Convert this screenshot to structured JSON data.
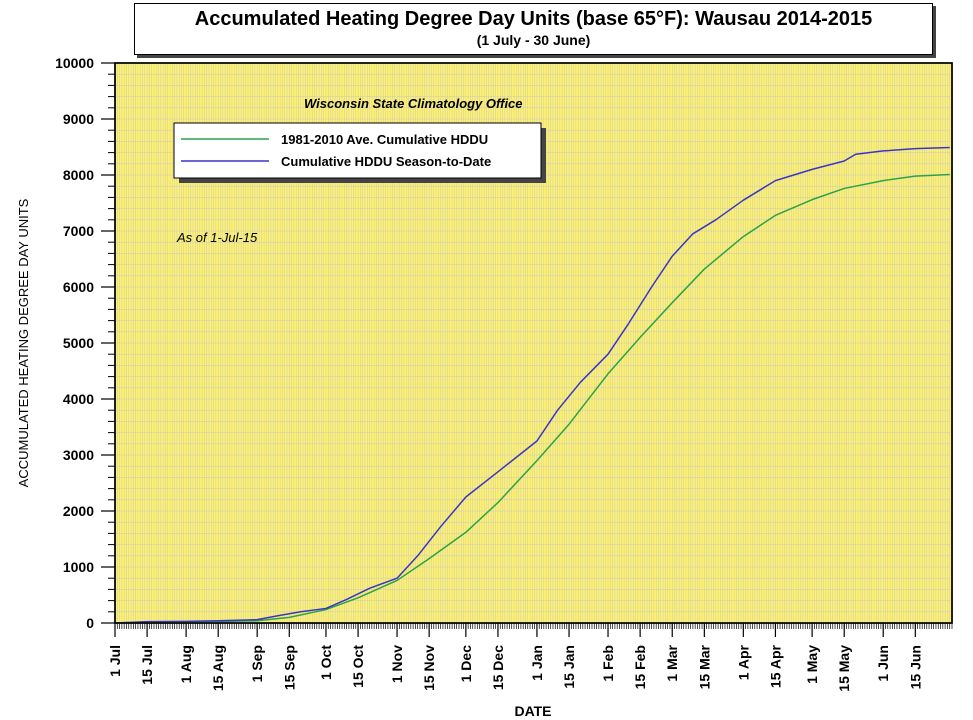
{
  "header": {
    "title": "Accumulated Heating Degree Day Units (base 65°F): Wausau 2014-2015",
    "subtitle": "(1 July - 30 June)"
  },
  "annotations": {
    "source": "Wisconsin State Climatology Office",
    "as_of": "As of 1-Jul-15"
  },
  "colors": {
    "plot_background": "#fff26b",
    "grid": "#c8c8c8",
    "average_line": "#2ca24a",
    "season_line": "#3a35c8"
  },
  "chart_data": {
    "type": "line",
    "xlabel": "DATE",
    "ylabel": "ACCUMULATED HEATING DEGREE DAY UNITS",
    "ylim": [
      0,
      10000
    ],
    "yticks": [
      0,
      1000,
      2000,
      3000,
      4000,
      5000,
      6000,
      7000,
      8000,
      9000,
      10000
    ],
    "x_ticks": [
      "1 Jul",
      "15 Jul",
      "1 Aug",
      "15 Aug",
      "1 Sep",
      "15 Sep",
      "1 Oct",
      "15 Oct",
      "1 Nov",
      "15 Nov",
      "1 Dec",
      "15 Dec",
      "1 Jan",
      "15 Jan",
      "1 Feb",
      "15 Feb",
      "1 Mar",
      "15 Mar",
      "1 Apr",
      "15 Apr",
      "1 May",
      "15 May",
      "1 Jun",
      "15 Jun"
    ],
    "x_tick_dates": [
      "2014-07-01",
      "2014-07-15",
      "2014-08-01",
      "2014-08-15",
      "2014-09-01",
      "2014-09-15",
      "2014-10-01",
      "2014-10-15",
      "2014-11-01",
      "2014-11-15",
      "2014-12-01",
      "2014-12-15",
      "2015-01-01",
      "2015-01-15",
      "2015-02-01",
      "2015-02-15",
      "2015-03-01",
      "2015-03-15",
      "2015-04-01",
      "2015-04-15",
      "2015-05-01",
      "2015-05-15",
      "2015-06-01",
      "2015-06-15"
    ],
    "xlim": [
      "2014-07-01",
      "2015-06-30"
    ],
    "grid": true,
    "legend_position": "top-left",
    "series": [
      {
        "name": "1981-2010 Ave. Cumulative HDDU",
        "x": [
          "2014-07-01",
          "2014-08-01",
          "2014-09-01",
          "2014-09-15",
          "2014-10-01",
          "2014-10-15",
          "2014-11-01",
          "2014-11-15",
          "2014-12-01",
          "2014-12-15",
          "2015-01-01",
          "2015-01-15",
          "2015-02-01",
          "2015-02-15",
          "2015-03-01",
          "2015-03-15",
          "2015-04-01",
          "2015-04-15",
          "2015-05-01",
          "2015-05-15",
          "2015-06-01",
          "2015-06-15",
          "2015-06-30"
        ],
        "values": [
          0,
          15,
          40,
          100,
          240,
          450,
          760,
          1150,
          1620,
          2150,
          2900,
          3550,
          4450,
          5100,
          5720,
          6320,
          6900,
          7280,
          7560,
          7760,
          7900,
          7980,
          8010
        ]
      },
      {
        "name": "Cumulative HDDU Season-to-Date",
        "x": [
          "2014-07-01",
          "2014-07-15",
          "2014-08-01",
          "2014-08-15",
          "2014-09-01",
          "2014-09-10",
          "2014-09-20",
          "2014-10-01",
          "2014-10-10",
          "2014-10-20",
          "2014-11-01",
          "2014-11-10",
          "2014-11-20",
          "2014-12-01",
          "2014-12-15",
          "2015-01-01",
          "2015-01-10",
          "2015-01-20",
          "2015-02-01",
          "2015-02-10",
          "2015-02-20",
          "2015-03-01",
          "2015-03-10",
          "2015-03-20",
          "2015-04-01",
          "2015-04-15",
          "2015-05-01",
          "2015-05-15",
          "2015-05-20",
          "2015-06-01",
          "2015-06-15",
          "2015-06-30"
        ],
        "values": [
          0,
          25,
          30,
          40,
          60,
          130,
          200,
          260,
          420,
          620,
          800,
          1200,
          1720,
          2250,
          2700,
          3250,
          3800,
          4300,
          4800,
          5350,
          6000,
          6550,
          6950,
          7200,
          7550,
          7900,
          8100,
          8250,
          8370,
          8430,
          8470,
          8490
        ]
      }
    ]
  }
}
